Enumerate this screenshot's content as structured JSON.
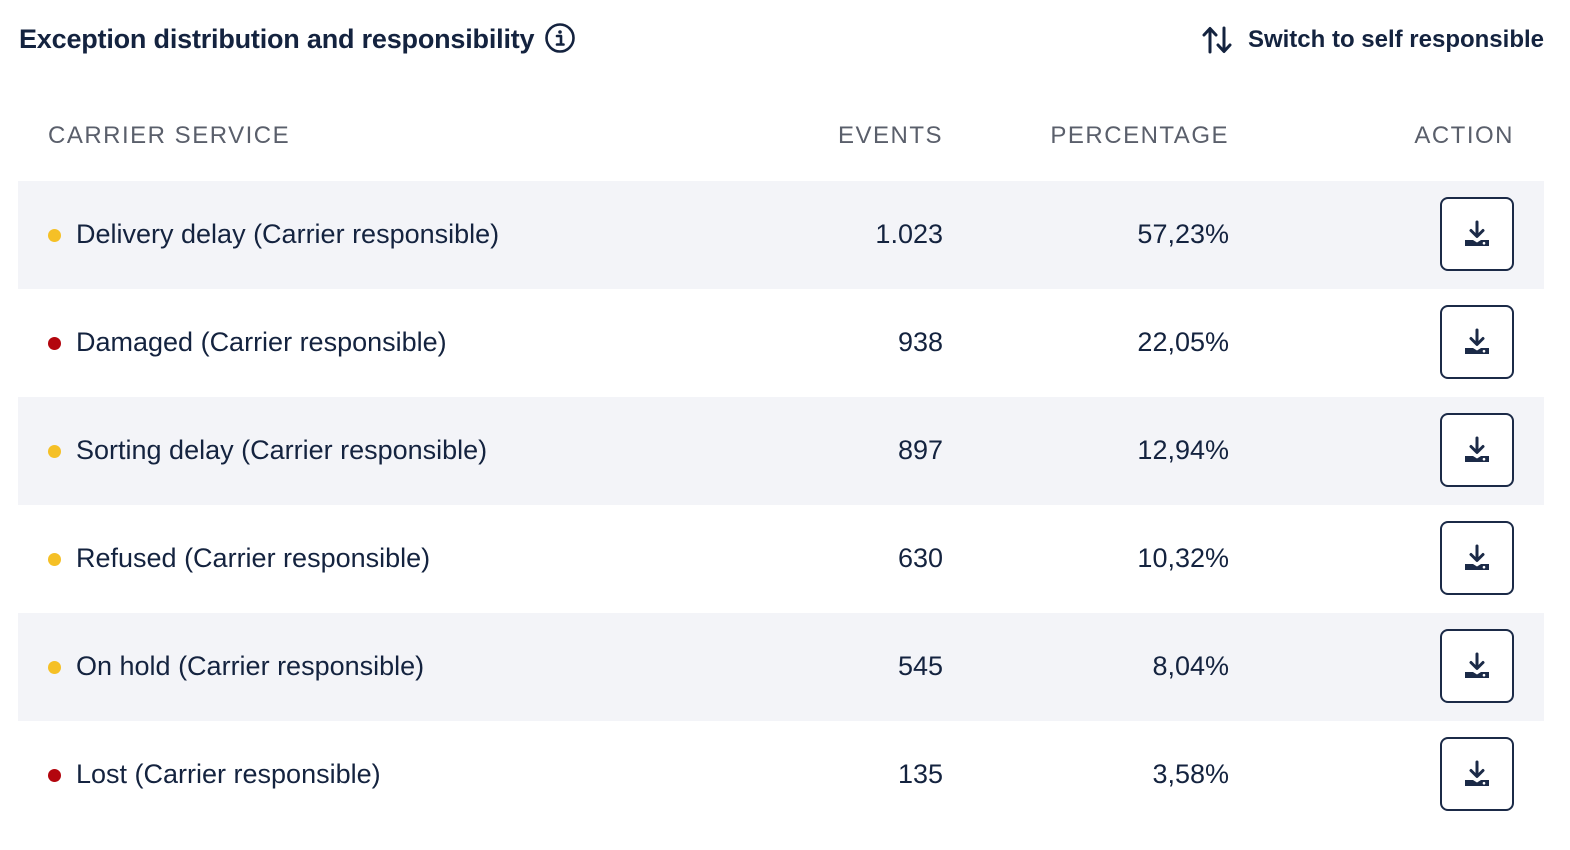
{
  "header": {
    "title": "Exception distribution and responsibility",
    "info_icon": "info-circle-icon",
    "switch_label": "Switch to self responsible",
    "switch_icon": "sort-arrows-icon"
  },
  "table": {
    "columns": {
      "carrier_service": "CARRIER SERVICE",
      "events": "EVENTS",
      "percentage": "PERCENTAGE",
      "action": "ACTION"
    },
    "rows": [
      {
        "name": "Delivery delay (Carrier responsible)",
        "events": "1.023",
        "percentage": "57,23%",
        "status": "warning",
        "status_color": "#f5c026",
        "action_icon": "download-icon"
      },
      {
        "name": "Damaged (Carrier responsible)",
        "events": "938",
        "percentage": "22,05%",
        "status": "critical",
        "status_color": "#b3060e",
        "action_icon": "download-icon"
      },
      {
        "name": "Sorting delay (Carrier responsible)",
        "events": "897",
        "percentage": "12,94%",
        "status": "warning",
        "status_color": "#f5c026",
        "action_icon": "download-icon"
      },
      {
        "name": "Refused (Carrier responsible)",
        "events": "630",
        "percentage": "10,32%",
        "status": "warning",
        "status_color": "#f5c026",
        "action_icon": "download-icon"
      },
      {
        "name": "On hold (Carrier responsible)",
        "events": "545",
        "percentage": "8,04%",
        "status": "warning",
        "status_color": "#f5c026",
        "action_icon": "download-icon"
      },
      {
        "name": "Lost (Carrier responsible)",
        "events": "135",
        "percentage": "3,58%",
        "status": "critical",
        "status_color": "#b3060e",
        "action_icon": "download-icon"
      }
    ]
  },
  "colors": {
    "text_primary": "#14233f",
    "header_text": "#5a5f6b",
    "row_alt_bg": "#f3f4f8",
    "warning": "#f5c026",
    "critical": "#b3060e"
  }
}
